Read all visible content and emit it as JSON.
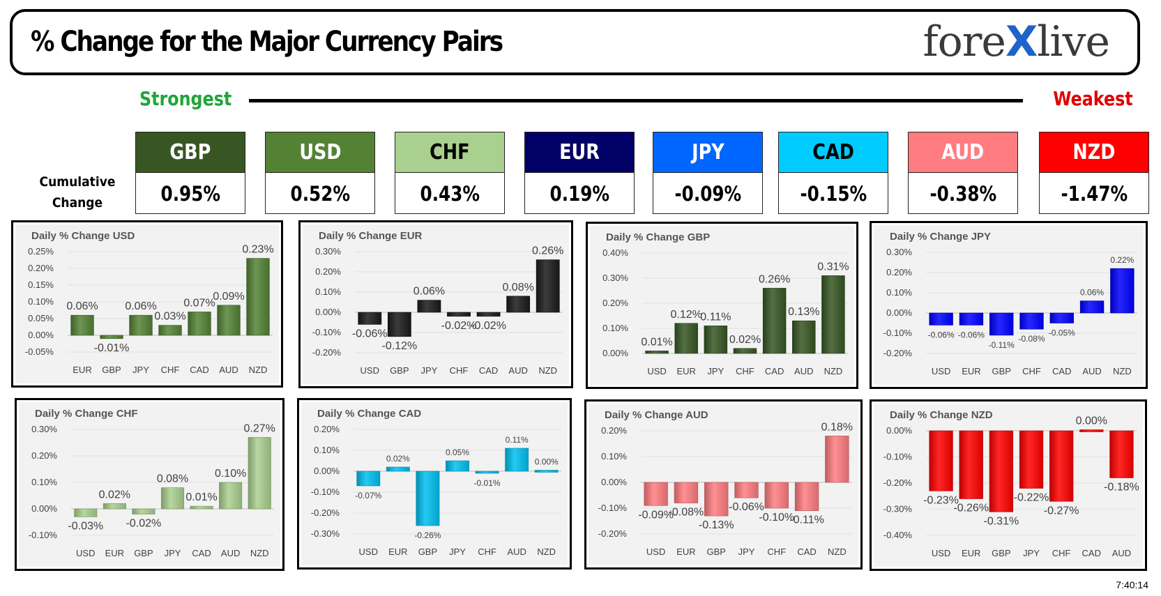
{
  "header": {
    "title": "% Change for the Major Currency Pairs",
    "logo_left": "fore",
    "logo_x": "X",
    "logo_right": "live"
  },
  "ranking": {
    "strongest": "Strongest",
    "weakest": "Weakest",
    "cumulative_label_line1": "Cumulative",
    "cumulative_label_line2": "Change",
    "currencies": [
      {
        "code": "GBP",
        "value": "0.95%",
        "bg": "#375623",
        "fg": "#ffffff"
      },
      {
        "code": "USD",
        "value": "0.52%",
        "bg": "#548235",
        "fg": "#ffffff"
      },
      {
        "code": "CHF",
        "value": "0.43%",
        "bg": "#a9d08e",
        "fg": "#000000"
      },
      {
        "code": "EUR",
        "value": "0.19%",
        "bg": "#000066",
        "fg": "#ffffff"
      },
      {
        "code": "JPY",
        "value": "-0.09%",
        "bg": "#0066ff",
        "fg": "#ffffff"
      },
      {
        "code": "CAD",
        "value": "-0.15%",
        "bg": "#00ccff",
        "fg": "#000000"
      },
      {
        "code": "AUD",
        "value": "-0.38%",
        "bg": "#ff7c80",
        "fg": "#ffffff"
      },
      {
        "code": "NZD",
        "value": "-1.47%",
        "bg": "#ff0000",
        "fg": "#ffffff"
      }
    ]
  },
  "timestamp": "7:40:14",
  "chart_data": [
    {
      "type": "bar",
      "title": "Daily % Change USD",
      "categories": [
        "EUR",
        "GBP",
        "JPY",
        "CHF",
        "CAD",
        "AUD",
        "NZD"
      ],
      "values": [
        0.06,
        -0.01,
        0.06,
        0.03,
        0.07,
        0.09,
        0.23
      ],
      "labels": [
        "0.06%",
        "-0.01%",
        "0.06%",
        "0.03%",
        "0.07%",
        "0.09%",
        "0.23%"
      ],
      "yticks": [
        -0.05,
        0,
        0.05,
        0.1,
        0.15,
        0.2,
        0.25
      ],
      "ytick_labels": [
        "-0.05%",
        "0.00%",
        "0.05%",
        "0.10%",
        "0.15%",
        "0.20%",
        "0.25%"
      ],
      "ylim": [
        -0.05,
        0.25
      ],
      "color": "#548235"
    },
    {
      "type": "bar",
      "title": "Daily % Change EUR",
      "categories": [
        "USD",
        "GBP",
        "JPY",
        "CHF",
        "CAD",
        "AUD",
        "NZD"
      ],
      "values": [
        -0.06,
        -0.12,
        0.06,
        -0.02,
        -0.02,
        0.08,
        0.26
      ],
      "labels": [
        "-0.06%",
        "-0.12%",
        "0.06%",
        "-0.02%",
        "-0.02%",
        "0.08%",
        "0.26%"
      ],
      "yticks": [
        -0.2,
        -0.1,
        0,
        0.1,
        0.2,
        0.3
      ],
      "ytick_labels": [
        "-0.20%",
        "-0.10%",
        "0.00%",
        "0.10%",
        "0.20%",
        "0.30%"
      ],
      "ylim": [
        -0.2,
        0.3
      ],
      "color": "#1a1a1a"
    },
    {
      "type": "bar",
      "title": "Daily % Change GBP",
      "categories": [
        "USD",
        "EUR",
        "JPY",
        "CHF",
        "CAD",
        "AUD",
        "NZD"
      ],
      "values": [
        0.01,
        0.12,
        0.11,
        0.02,
        0.26,
        0.13,
        0.31
      ],
      "labels": [
        "0.01%",
        "0.12%",
        "0.11%",
        "0.02%",
        "0.26%",
        "0.13%",
        "0.31%"
      ],
      "yticks": [
        0,
        0.1,
        0.2,
        0.3,
        0.4
      ],
      "ytick_labels": [
        "0.00%",
        "0.10%",
        "0.20%",
        "0.30%",
        "0.40%"
      ],
      "ylim": [
        0,
        0.4
      ],
      "color": "#375623"
    },
    {
      "type": "bar",
      "title": "Daily % Change JPY",
      "categories": [
        "USD",
        "EUR",
        "GBP",
        "CHF",
        "CAD",
        "AUD",
        "NZD"
      ],
      "values": [
        -0.06,
        -0.06,
        -0.11,
        -0.08,
        -0.05,
        0.06,
        0.22
      ],
      "labels": [
        "-0.06%",
        "-0.06%",
        "-0.11%",
        "-0.08%",
        "-0.05%",
        "0.06%",
        "0.22%"
      ],
      "yticks": [
        -0.2,
        -0.1,
        0,
        0.1,
        0.2,
        0.3
      ],
      "ytick_labels": [
        "-0.20%",
        "-0.10%",
        "0.00%",
        "0.10%",
        "0.20%",
        "0.30%"
      ],
      "ylim": [
        -0.2,
        0.3
      ],
      "color": "#0000ff"
    },
    {
      "type": "bar",
      "title": "Daily % Change CHF",
      "categories": [
        "USD",
        "EUR",
        "GBP",
        "JPY",
        "CAD",
        "AUD",
        "NZD"
      ],
      "values": [
        -0.03,
        0.02,
        -0.02,
        0.08,
        0.01,
        0.1,
        0.27
      ],
      "labels": [
        "-0.03%",
        "0.02%",
        "-0.02%",
        "0.08%",
        "0.01%",
        "0.10%",
        "0.27%"
      ],
      "yticks": [
        -0.1,
        0,
        0.1,
        0.2,
        0.3
      ],
      "ytick_labels": [
        "-0.10%",
        "0.00%",
        "0.10%",
        "0.20%",
        "0.30%"
      ],
      "ylim": [
        -0.1,
        0.3
      ],
      "color": "#a9d08e"
    },
    {
      "type": "bar",
      "title": "Daily % Change CAD",
      "categories": [
        "USD",
        "EUR",
        "GBP",
        "JPY",
        "CHF",
        "AUD",
        "NZD"
      ],
      "values": [
        -0.07,
        0.02,
        -0.26,
        0.05,
        -0.01,
        0.11,
        0.0
      ],
      "labels": [
        "-0.07%",
        "0.02%",
        "-0.26%",
        "0.05%",
        "-0.01%",
        "0.11%",
        "0.00%"
      ],
      "yticks": [
        -0.3,
        -0.2,
        -0.1,
        0,
        0.1,
        0.2
      ],
      "ytick_labels": [
        "-0.30%",
        "-0.20%",
        "-0.10%",
        "0.00%",
        "0.10%",
        "0.20%"
      ],
      "ylim": [
        -0.3,
        0.2
      ],
      "color": "#00c0f0"
    },
    {
      "type": "bar",
      "title": "Daily % Change AUD",
      "categories": [
        "USD",
        "EUR",
        "GBP",
        "JPY",
        "CHF",
        "CAD",
        "NZD"
      ],
      "values": [
        -0.09,
        -0.08,
        -0.13,
        -0.06,
        -0.1,
        -0.11,
        0.18
      ],
      "labels": [
        "-0.09%",
        "-0.08%",
        "-0.13%",
        "-0.06%",
        "-0.10%",
        "-0.11%",
        "0.18%"
      ],
      "yticks": [
        -0.2,
        -0.1,
        0,
        0.1,
        0.2
      ],
      "ytick_labels": [
        "-0.20%",
        "-0.10%",
        "0.00%",
        "0.10%",
        "0.20%"
      ],
      "ylim": [
        -0.2,
        0.2
      ],
      "color": "#ff7c80"
    },
    {
      "type": "bar",
      "title": "Daily % Change NZD",
      "categories": [
        "USD",
        "EUR",
        "GBP",
        "JPY",
        "CHF",
        "CAD",
        "AUD"
      ],
      "values": [
        -0.23,
        -0.26,
        -0.31,
        -0.22,
        -0.27,
        0.0,
        -0.18
      ],
      "labels": [
        "-0.23%",
        "-0.26%",
        "-0.31%",
        "-0.22%",
        "-0.27%",
        "0.00%",
        "-0.18%"
      ],
      "yticks": [
        -0.4,
        -0.3,
        -0.2,
        -0.1,
        0
      ],
      "ytick_labels": [
        "-0.40%",
        "-0.30%",
        "-0.20%",
        "-0.10%",
        "0.00%"
      ],
      "ylim": [
        -0.4,
        0
      ],
      "color": "#ff0000"
    }
  ]
}
